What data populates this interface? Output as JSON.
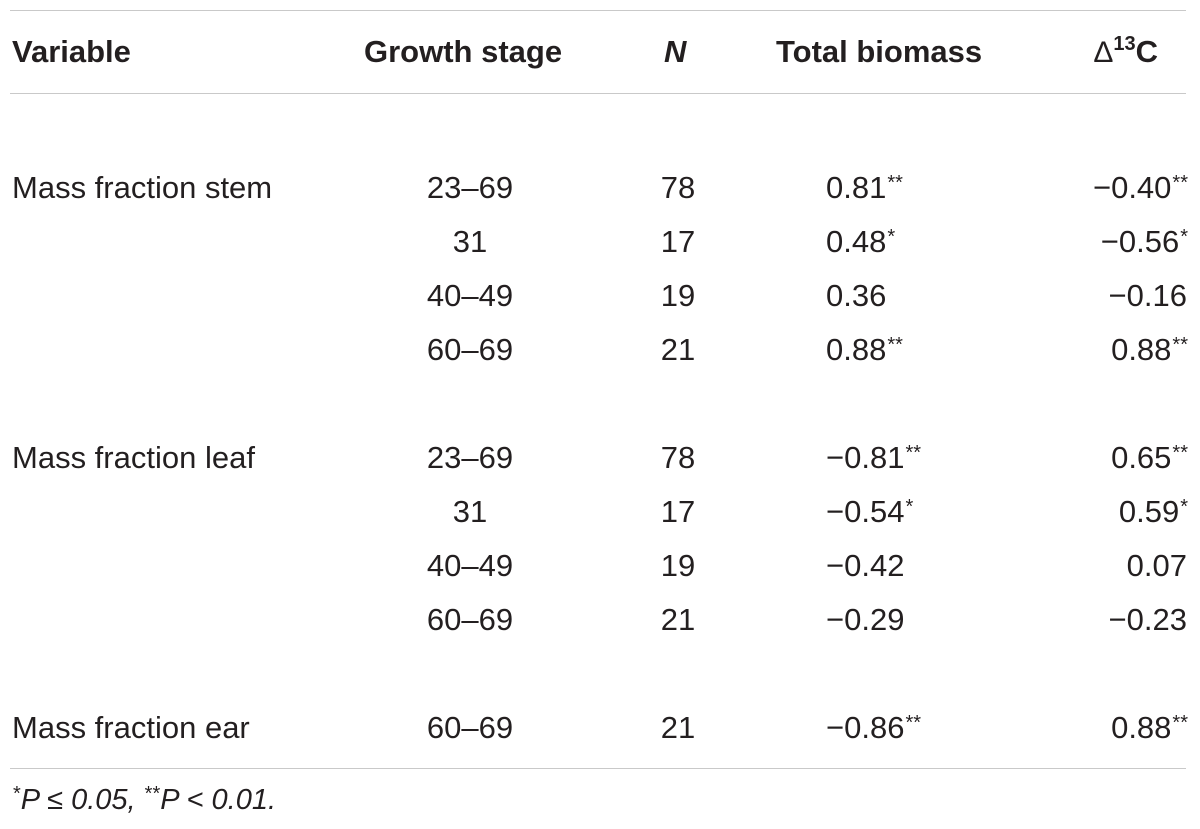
{
  "table": {
    "headers": {
      "variable": "Variable",
      "growth_stage": "Growth stage",
      "n": "N",
      "total_biomass": "Total biomass",
      "delta_symbol": "Δ",
      "delta_sup": "13",
      "delta_tail": "C"
    },
    "groups": [
      {
        "variable": "Mass fraction stem",
        "rows": [
          {
            "stage": "23–69",
            "n": "78",
            "biomass": "0.81",
            "biomass_sig": "**",
            "d13c": "−0.40",
            "d13c_sig": "**"
          },
          {
            "stage": "31",
            "n": "17",
            "biomass": "0.48",
            "biomass_sig": "*",
            "d13c": "−0.56",
            "d13c_sig": "*"
          },
          {
            "stage": "40–49",
            "n": "19",
            "biomass": "0.36",
            "biomass_sig": "",
            "d13c": "−0.16",
            "d13c_sig": ""
          },
          {
            "stage": "60–69",
            "n": "21",
            "biomass": "0.88",
            "biomass_sig": "**",
            "d13c": "0.88",
            "d13c_sig": "**"
          }
        ]
      },
      {
        "variable": "Mass fraction leaf",
        "rows": [
          {
            "stage": "23–69",
            "n": "78",
            "biomass": "−0.81",
            "biomass_sig": "**",
            "d13c": "0.65",
            "d13c_sig": "**"
          },
          {
            "stage": "31",
            "n": "17",
            "biomass": "−0.54",
            "biomass_sig": "*",
            "d13c": "0.59",
            "d13c_sig": "*"
          },
          {
            "stage": "40–49",
            "n": "19",
            "biomass": "−0.42",
            "biomass_sig": "",
            "d13c": "0.07",
            "d13c_sig": ""
          },
          {
            "stage": "60–69",
            "n": "21",
            "biomass": "−0.29",
            "biomass_sig": "",
            "d13c": "−0.23",
            "d13c_sig": ""
          }
        ]
      },
      {
        "variable": "Mass fraction ear",
        "rows": [
          {
            "stage": "60–69",
            "n": "21",
            "biomass": "−0.86",
            "biomass_sig": "**",
            "d13c": "0.88",
            "d13c_sig": "**"
          }
        ]
      }
    ],
    "footnote": "*P ≤ 0.05, **P < 0.01."
  }
}
